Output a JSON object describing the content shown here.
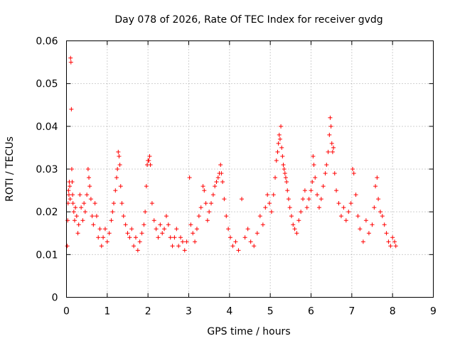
{
  "chart_data": {
    "type": "scatter",
    "title": "Day 078 of 2026, Rate Of TEC Index for receiver gvdg",
    "xlabel": "GPS time / hours",
    "ylabel": "ROTI / TECUs",
    "xlim": [
      0,
      9
    ],
    "ylim": [
      0,
      0.06
    ],
    "x_ticks": [
      "0",
      "1",
      "2",
      "3",
      "4",
      "5",
      "6",
      "7",
      "8",
      "9"
    ],
    "y_ticks": [
      "0",
      "0.01",
      "0.02",
      "0.03",
      "0.04",
      "0.05",
      "0.06"
    ],
    "grid": true,
    "marker": "+",
    "color": "#ff0000",
    "series": [
      {
        "name": "ROTI",
        "points": [
          [
            0.02,
            0.012
          ],
          [
            0.03,
            0.018
          ],
          [
            0.04,
            0.022
          ],
          [
            0.05,
            0.025
          ],
          [
            0.06,
            0.024
          ],
          [
            0.07,
            0.027
          ],
          [
            0.08,
            0.026
          ],
          [
            0.09,
            0.023
          ],
          [
            0.1,
            0.056
          ],
          [
            0.11,
            0.055
          ],
          [
            0.12,
            0.044
          ],
          [
            0.13,
            0.03
          ],
          [
            0.14,
            0.027
          ],
          [
            0.15,
            0.024
          ],
          [
            0.16,
            0.022
          ],
          [
            0.18,
            0.02
          ],
          [
            0.2,
            0.018
          ],
          [
            0.22,
            0.021
          ],
          [
            0.25,
            0.019
          ],
          [
            0.28,
            0.015
          ],
          [
            0.3,
            0.017
          ],
          [
            0.33,
            0.024
          ],
          [
            0.36,
            0.021
          ],
          [
            0.4,
            0.018
          ],
          [
            0.43,
            0.022
          ],
          [
            0.46,
            0.02
          ],
          [
            0.5,
            0.024
          ],
          [
            0.53,
            0.03
          ],
          [
            0.55,
            0.028
          ],
          [
            0.57,
            0.026
          ],
          [
            0.6,
            0.023
          ],
          [
            0.63,
            0.019
          ],
          [
            0.66,
            0.017
          ],
          [
            0.7,
            0.022
          ],
          [
            0.74,
            0.019
          ],
          [
            0.78,
            0.014
          ],
          [
            0.82,
            0.016
          ],
          [
            0.86,
            0.012
          ],
          [
            0.9,
            0.014
          ],
          [
            0.95,
            0.016
          ],
          [
            1.0,
            0.013
          ],
          [
            1.05,
            0.015
          ],
          [
            1.1,
            0.018
          ],
          [
            1.13,
            0.02
          ],
          [
            1.16,
            0.022
          ],
          [
            1.2,
            0.025
          ],
          [
            1.23,
            0.028
          ],
          [
            1.25,
            0.03
          ],
          [
            1.27,
            0.034
          ],
          [
            1.29,
            0.033
          ],
          [
            1.31,
            0.031
          ],
          [
            1.33,
            0.026
          ],
          [
            1.36,
            0.022
          ],
          [
            1.4,
            0.019
          ],
          [
            1.45,
            0.017
          ],
          [
            1.5,
            0.015
          ],
          [
            1.55,
            0.014
          ],
          [
            1.6,
            0.016
          ],
          [
            1.65,
            0.012
          ],
          [
            1.7,
            0.014
          ],
          [
            1.75,
            0.011
          ],
          [
            1.8,
            0.013
          ],
          [
            1.85,
            0.015
          ],
          [
            1.9,
            0.017
          ],
          [
            1.93,
            0.02
          ],
          [
            1.96,
            0.026
          ],
          [
            1.98,
            0.031
          ],
          [
            2.0,
            0.032
          ],
          [
            2.02,
            0.032
          ],
          [
            2.04,
            0.033
          ],
          [
            2.06,
            0.031
          ],
          [
            2.1,
            0.022
          ],
          [
            2.15,
            0.018
          ],
          [
            2.2,
            0.016
          ],
          [
            2.25,
            0.014
          ],
          [
            2.3,
            0.017
          ],
          [
            2.35,
            0.015
          ],
          [
            2.4,
            0.016
          ],
          [
            2.45,
            0.019
          ],
          [
            2.5,
            0.017
          ],
          [
            2.55,
            0.014
          ],
          [
            2.6,
            0.012
          ],
          [
            2.65,
            0.014
          ],
          [
            2.7,
            0.016
          ],
          [
            2.75,
            0.012
          ],
          [
            2.8,
            0.014
          ],
          [
            2.85,
            0.013
          ],
          [
            2.9,
            0.011
          ],
          [
            2.95,
            0.013
          ],
          [
            3.02,
            0.028
          ],
          [
            3.05,
            0.017
          ],
          [
            3.1,
            0.015
          ],
          [
            3.15,
            0.013
          ],
          [
            3.2,
            0.016
          ],
          [
            3.25,
            0.019
          ],
          [
            3.3,
            0.021
          ],
          [
            3.35,
            0.026
          ],
          [
            3.38,
            0.025
          ],
          [
            3.42,
            0.022
          ],
          [
            3.46,
            0.018
          ],
          [
            3.5,
            0.02
          ],
          [
            3.55,
            0.022
          ],
          [
            3.6,
            0.024
          ],
          [
            3.64,
            0.026
          ],
          [
            3.68,
            0.027
          ],
          [
            3.72,
            0.028
          ],
          [
            3.75,
            0.029
          ],
          [
            3.78,
            0.031
          ],
          [
            3.8,
            0.029
          ],
          [
            3.83,
            0.027
          ],
          [
            3.87,
            0.023
          ],
          [
            3.92,
            0.019
          ],
          [
            3.97,
            0.016
          ],
          [
            4.02,
            0.014
          ],
          [
            4.08,
            0.012
          ],
          [
            4.15,
            0.013
          ],
          [
            4.22,
            0.011
          ],
          [
            4.3,
            0.023
          ],
          [
            4.38,
            0.014
          ],
          [
            4.45,
            0.016
          ],
          [
            4.52,
            0.013
          ],
          [
            4.6,
            0.012
          ],
          [
            4.68,
            0.015
          ],
          [
            4.75,
            0.019
          ],
          [
            4.82,
            0.017
          ],
          [
            4.88,
            0.021
          ],
          [
            4.93,
            0.024
          ],
          [
            4.98,
            0.022
          ],
          [
            5.03,
            0.02
          ],
          [
            5.08,
            0.024
          ],
          [
            5.12,
            0.028
          ],
          [
            5.15,
            0.032
          ],
          [
            5.18,
            0.034
          ],
          [
            5.2,
            0.036
          ],
          [
            5.22,
            0.038
          ],
          [
            5.24,
            0.037
          ],
          [
            5.26,
            0.04
          ],
          [
            5.28,
            0.035
          ],
          [
            5.3,
            0.033
          ],
          [
            5.32,
            0.031
          ],
          [
            5.34,
            0.03
          ],
          [
            5.36,
            0.029
          ],
          [
            5.38,
            0.028
          ],
          [
            5.4,
            0.027
          ],
          [
            5.42,
            0.025
          ],
          [
            5.45,
            0.023
          ],
          [
            5.48,
            0.021
          ],
          [
            5.52,
            0.019
          ],
          [
            5.56,
            0.017
          ],
          [
            5.6,
            0.016
          ],
          [
            5.65,
            0.015
          ],
          [
            5.7,
            0.018
          ],
          [
            5.75,
            0.02
          ],
          [
            5.8,
            0.023
          ],
          [
            5.85,
            0.025
          ],
          [
            5.9,
            0.021
          ],
          [
            5.95,
            0.023
          ],
          [
            6.0,
            0.025
          ],
          [
            6.03,
            0.027
          ],
          [
            6.05,
            0.033
          ],
          [
            6.07,
            0.031
          ],
          [
            6.1,
            0.028
          ],
          [
            6.15,
            0.024
          ],
          [
            6.2,
            0.021
          ],
          [
            6.25,
            0.023
          ],
          [
            6.3,
            0.026
          ],
          [
            6.35,
            0.029
          ],
          [
            6.38,
            0.031
          ],
          [
            6.42,
            0.034
          ],
          [
            6.45,
            0.038
          ],
          [
            6.47,
            0.042
          ],
          [
            6.49,
            0.04
          ],
          [
            6.51,
            0.036
          ],
          [
            6.53,
            0.034
          ],
          [
            6.55,
            0.035
          ],
          [
            6.58,
            0.029
          ],
          [
            6.62,
            0.025
          ],
          [
            6.68,
            0.022
          ],
          [
            6.74,
            0.019
          ],
          [
            6.8,
            0.021
          ],
          [
            6.86,
            0.018
          ],
          [
            6.92,
            0.02
          ],
          [
            6.98,
            0.022
          ],
          [
            7.02,
            0.03
          ],
          [
            7.05,
            0.029
          ],
          [
            7.1,
            0.024
          ],
          [
            7.15,
            0.019
          ],
          [
            7.2,
            0.016
          ],
          [
            7.28,
            0.013
          ],
          [
            7.35,
            0.018
          ],
          [
            7.42,
            0.015
          ],
          [
            7.5,
            0.017
          ],
          [
            7.55,
            0.021
          ],
          [
            7.58,
            0.026
          ],
          [
            7.62,
            0.028
          ],
          [
            7.65,
            0.023
          ],
          [
            7.7,
            0.02
          ],
          [
            7.75,
            0.019
          ],
          [
            7.8,
            0.017
          ],
          [
            7.85,
            0.015
          ],
          [
            7.9,
            0.013
          ],
          [
            7.95,
            0.012
          ],
          [
            8.0,
            0.014
          ],
          [
            8.05,
            0.013
          ],
          [
            8.08,
            0.012
          ]
        ]
      }
    ]
  }
}
